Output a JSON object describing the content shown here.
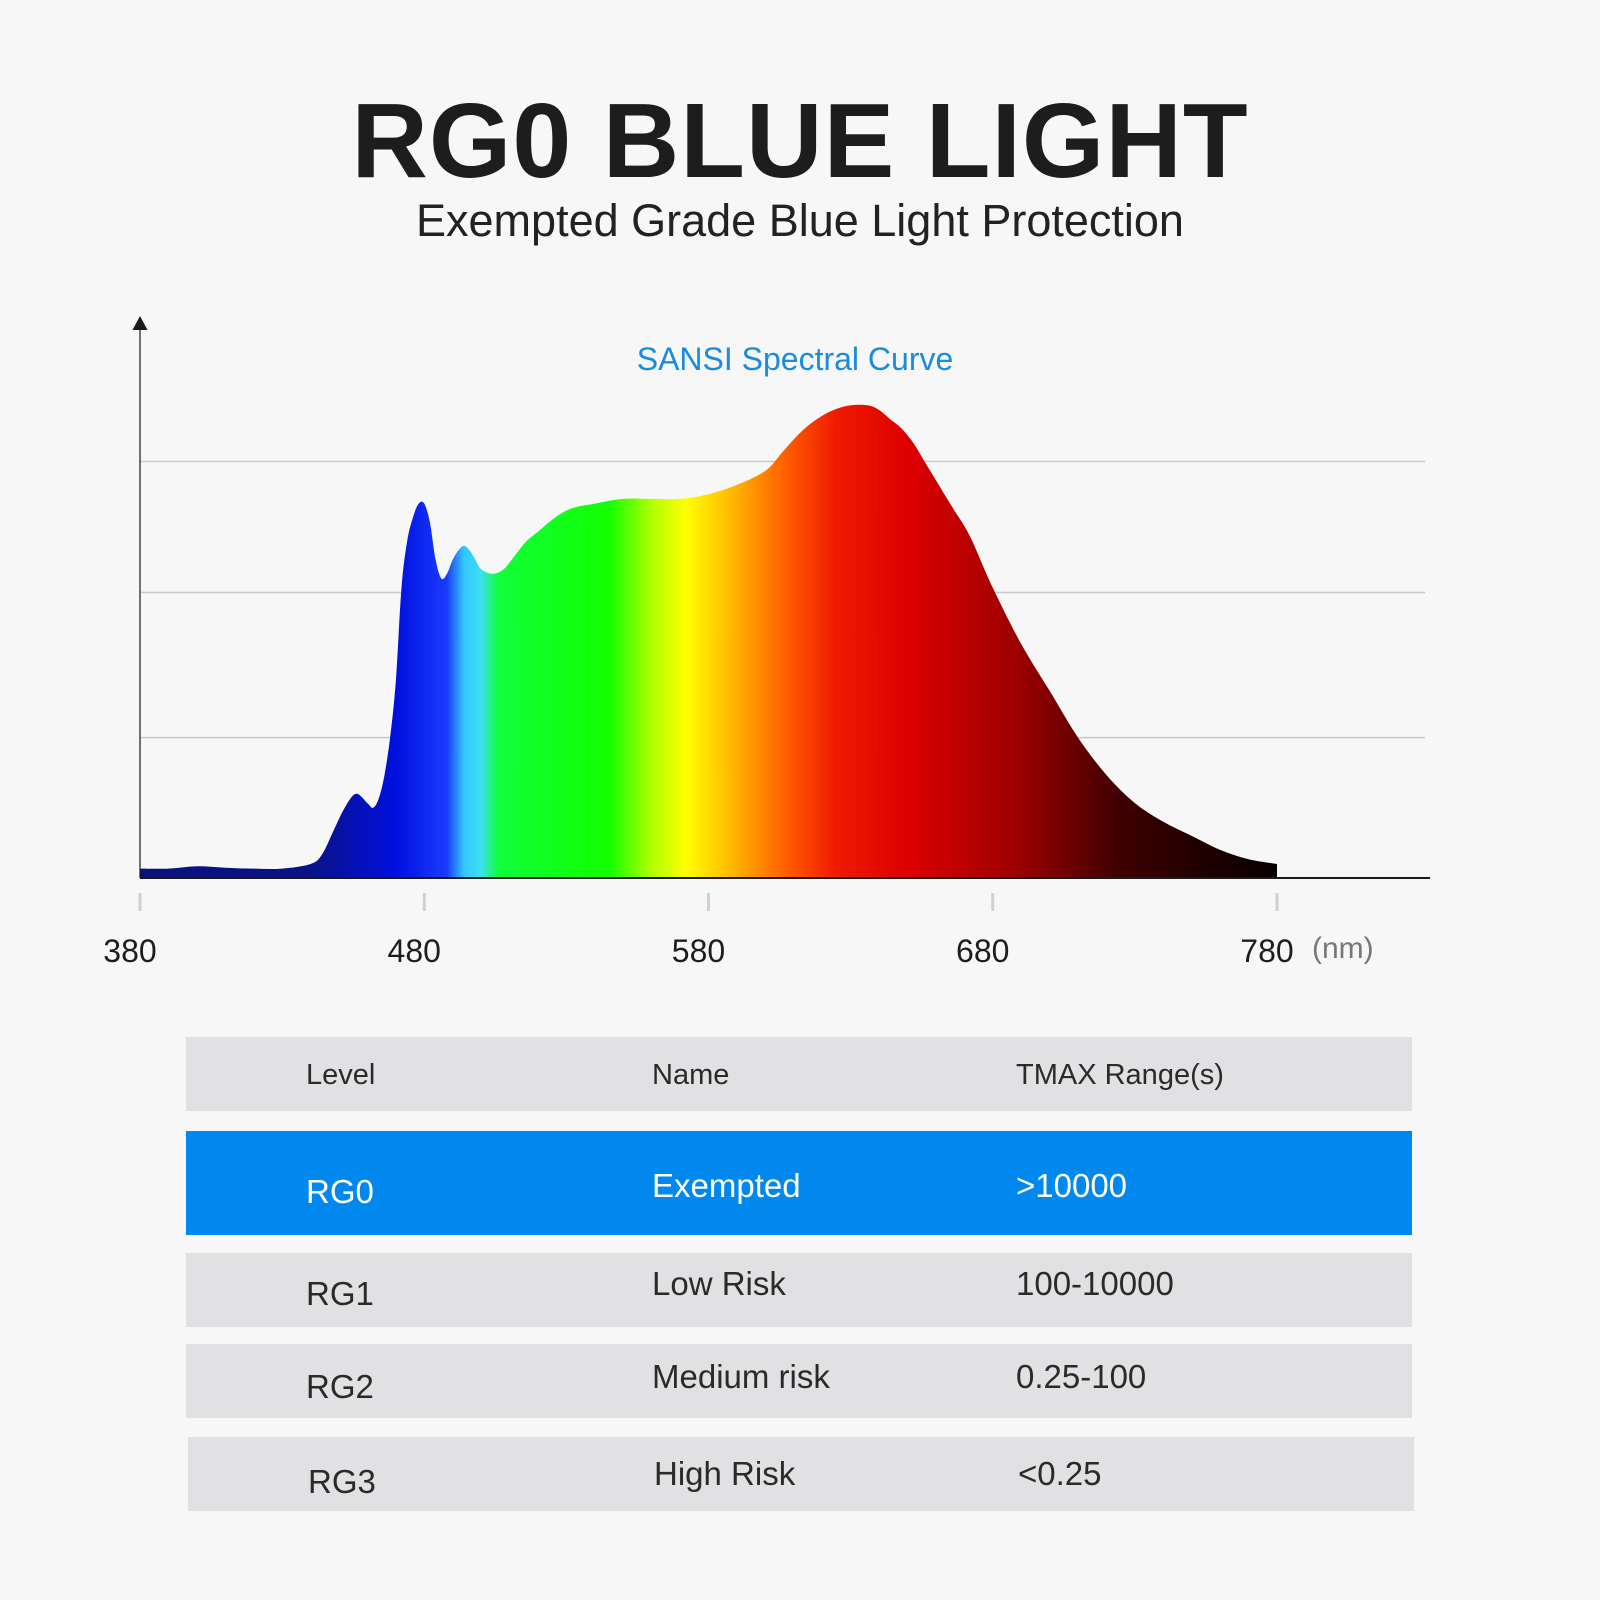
{
  "header": {
    "title": "RG0 BLUE LIGHT",
    "subtitle": "Exempted Grade Blue Light Protection"
  },
  "chart_data": {
    "type": "area",
    "title": "SANSI Spectral Curve",
    "xlabel": "",
    "x_unit": "(nm)",
    "ylabel": "",
    "xlim": [
      380,
      840
    ],
    "x_ticks": [
      380,
      480,
      580,
      680,
      780
    ],
    "ylim": [
      0,
      1
    ],
    "y_gridlines": [
      0.3,
      0.61,
      0.89
    ],
    "grid": true,
    "legend": "none",
    "series": [
      {
        "x": [
          380,
          390,
          400,
          410,
          420,
          430,
          440,
          444,
          448,
          452,
          456,
          460,
          462,
          464,
          466,
          468,
          470,
          472,
          474,
          476,
          478,
          480,
          482,
          484,
          486,
          488,
          490,
          492,
          494,
          496,
          498,
          500,
          504,
          508,
          512,
          516,
          520,
          526,
          532,
          540,
          550,
          560,
          570,
          580,
          590,
          600,
          606,
          612,
          618,
          624,
          630,
          636,
          640,
          644,
          648,
          652,
          656,
          660,
          666,
          672,
          680,
          690,
          700,
          710,
          720,
          730,
          740,
          750,
          760,
          770,
          780
        ],
        "values": [
          0.02,
          0.02,
          0.025,
          0.022,
          0.02,
          0.02,
          0.03,
          0.05,
          0.1,
          0.15,
          0.18,
          0.16,
          0.15,
          0.17,
          0.22,
          0.3,
          0.42,
          0.62,
          0.72,
          0.77,
          0.8,
          0.8,
          0.76,
          0.68,
          0.64,
          0.65,
          0.68,
          0.7,
          0.71,
          0.7,
          0.68,
          0.66,
          0.65,
          0.66,
          0.69,
          0.72,
          0.74,
          0.77,
          0.79,
          0.8,
          0.81,
          0.81,
          0.81,
          0.82,
          0.84,
          0.87,
          0.91,
          0.95,
          0.98,
          1.0,
          1.01,
          1.01,
          1.0,
          0.98,
          0.96,
          0.93,
          0.89,
          0.85,
          0.79,
          0.73,
          0.62,
          0.5,
          0.4,
          0.3,
          0.22,
          0.16,
          0.12,
          0.09,
          0.06,
          0.04,
          0.03
        ]
      }
    ],
    "spectrum_colors": [
      {
        "nm": 380,
        "color": "#09127a"
      },
      {
        "nm": 440,
        "color": "#0a1288"
      },
      {
        "nm": 470,
        "color": "#0010dd"
      },
      {
        "nm": 488,
        "color": "#1a3cff"
      },
      {
        "nm": 494,
        "color": "#35c6ff"
      },
      {
        "nm": 500,
        "color": "#3ae0ee"
      },
      {
        "nm": 506,
        "color": "#10ff3a"
      },
      {
        "nm": 545,
        "color": "#12ff00"
      },
      {
        "nm": 560,
        "color": "#b0ff00"
      },
      {
        "nm": 572,
        "color": "#ffff00"
      },
      {
        "nm": 588,
        "color": "#ffb800"
      },
      {
        "nm": 608,
        "color": "#ff5a00"
      },
      {
        "nm": 625,
        "color": "#ee1a00"
      },
      {
        "nm": 650,
        "color": "#dd0000"
      },
      {
        "nm": 690,
        "color": "#9a0000"
      },
      {
        "nm": 725,
        "color": "#3d0000"
      },
      {
        "nm": 780,
        "color": "#050000"
      }
    ]
  },
  "table": {
    "headers": [
      "Level",
      "Name",
      "TMAX Range(s)"
    ],
    "rows": [
      {
        "level": "RG0",
        "name": "Exempted",
        "range": ">10000",
        "highlight": true
      },
      {
        "level": "RG1",
        "name": "Low Risk",
        "range": "100-10000",
        "highlight": false
      },
      {
        "level": "RG2",
        "name": "Medium risk",
        "range": "0.25-100",
        "highlight": false
      },
      {
        "level": "RG3",
        "name": "High Risk",
        "range": "<0.25",
        "highlight": false
      }
    ],
    "highlight_color": "#0088ee"
  }
}
